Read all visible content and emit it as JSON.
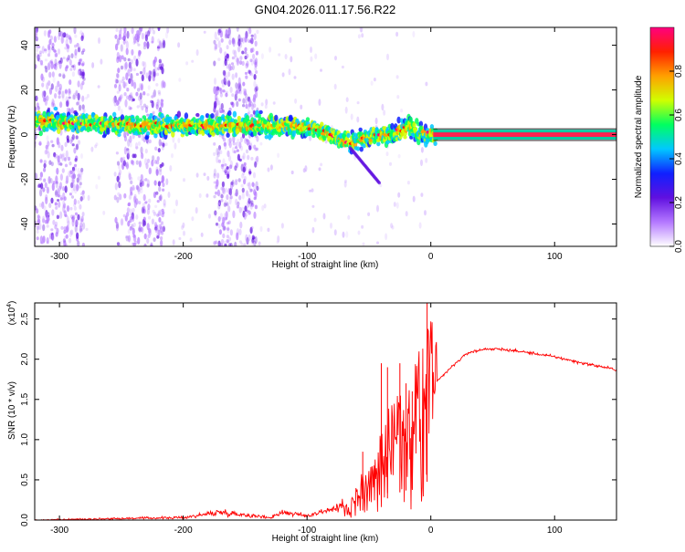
{
  "title": "GN04.2026.011.17.56.R22",
  "chart_data": [
    {
      "type": "heatmap",
      "xlabel": "Height of straight line (km)",
      "ylabel": "Frequency (Hz)",
      "xlim": [
        -320,
        150
      ],
      "ylim": [
        -50,
        48
      ],
      "xticks": [
        -300,
        -200,
        -100,
        0,
        100
      ],
      "yticks": [
        -40,
        -20,
        0,
        20,
        40
      ],
      "colorbar": {
        "label": "Normalized spectral amplitude",
        "range": [
          0.0,
          1.0
        ],
        "ticks": [
          0.0,
          0.2,
          0.4,
          0.6,
          0.8
        ],
        "colormap": [
          "#ffffff",
          "#b478ff",
          "#6010e0",
          "#1020ff",
          "#00c8ff",
          "#00ff60",
          "#d0ff00",
          "#ffa000",
          "#ff2000",
          "#ff0080"
        ]
      },
      "ridge": [
        {
          "x": -320,
          "y": 6
        },
        {
          "x": -280,
          "y": 5
        },
        {
          "x": -240,
          "y": 4
        },
        {
          "x": -200,
          "y": 4
        },
        {
          "x": -160,
          "y": 4
        },
        {
          "x": -140,
          "y": 4
        },
        {
          "x": -120,
          "y": 4
        },
        {
          "x": -100,
          "y": 3
        },
        {
          "x": -85,
          "y": 1
        },
        {
          "x": -75,
          "y": -2
        },
        {
          "x": -65,
          "y": -4
        },
        {
          "x": -55,
          "y": -2
        },
        {
          "x": -45,
          "y": 0
        },
        {
          "x": -30,
          "y": 0
        },
        {
          "x": -18,
          "y": 4
        },
        {
          "x": -10,
          "y": 1
        },
        {
          "x": 0,
          "y": 0
        },
        {
          "x": 150,
          "y": 0
        }
      ],
      "dense_bands": [
        [
          -320,
          -280
        ],
        [
          -255,
          -215
        ],
        [
          -175,
          -140
        ]
      ]
    },
    {
      "type": "line",
      "xlabel": "Height of straight line (km)",
      "ylabel": "SNR (10 * v/v)",
      "yscale_label": "(x10",
      "yscale_exp": "4",
      "yscale_close": ")",
      "xlim": [
        -320,
        150
      ],
      "ylim": [
        0,
        2.7
      ],
      "xticks": [
        -300,
        -200,
        -100,
        0,
        100
      ],
      "yticks": [
        "0.0",
        "0.5",
        "1.0",
        "1.5",
        "2.0",
        "2.5"
      ],
      "color": "#ff0000",
      "envelope": [
        {
          "x": -320,
          "y": 0.0
        },
        {
          "x": -250,
          "y": 0.02
        },
        {
          "x": -200,
          "y": 0.03
        },
        {
          "x": -170,
          "y": 0.1
        },
        {
          "x": -130,
          "y": 0.03
        },
        {
          "x": -120,
          "y": 0.1
        },
        {
          "x": -100,
          "y": 0.05
        },
        {
          "x": -90,
          "y": 0.1
        },
        {
          "x": -75,
          "y": 0.15
        },
        {
          "x": -60,
          "y": 0.3
        },
        {
          "x": -45,
          "y": 0.6
        },
        {
          "x": -35,
          "y": 0.9
        },
        {
          "x": -25,
          "y": 1.15
        },
        {
          "x": -15,
          "y": 1.3
        },
        {
          "x": -5,
          "y": 1.55
        },
        {
          "x": 0,
          "y": 1.65
        },
        {
          "x": 10,
          "y": 1.8
        },
        {
          "x": 20,
          "y": 1.95
        },
        {
          "x": 30,
          "y": 2.08
        },
        {
          "x": 45,
          "y": 2.13
        },
        {
          "x": 60,
          "y": 2.12
        },
        {
          "x": 80,
          "y": 2.08
        },
        {
          "x": 100,
          "y": 2.03
        },
        {
          "x": 120,
          "y": 1.96
        },
        {
          "x": 150,
          "y": 1.87
        }
      ],
      "spikes": [
        {
          "x": -55,
          "y": 0.85
        },
        {
          "x": -40,
          "y": 1.95
        },
        {
          "x": -35,
          "y": 1.9
        },
        {
          "x": -25,
          "y": 1.95
        },
        {
          "x": -20,
          "y": 1.7
        },
        {
          "x": -15,
          "y": 1.6
        },
        {
          "x": -3,
          "y": 2.7
        }
      ]
    }
  ]
}
